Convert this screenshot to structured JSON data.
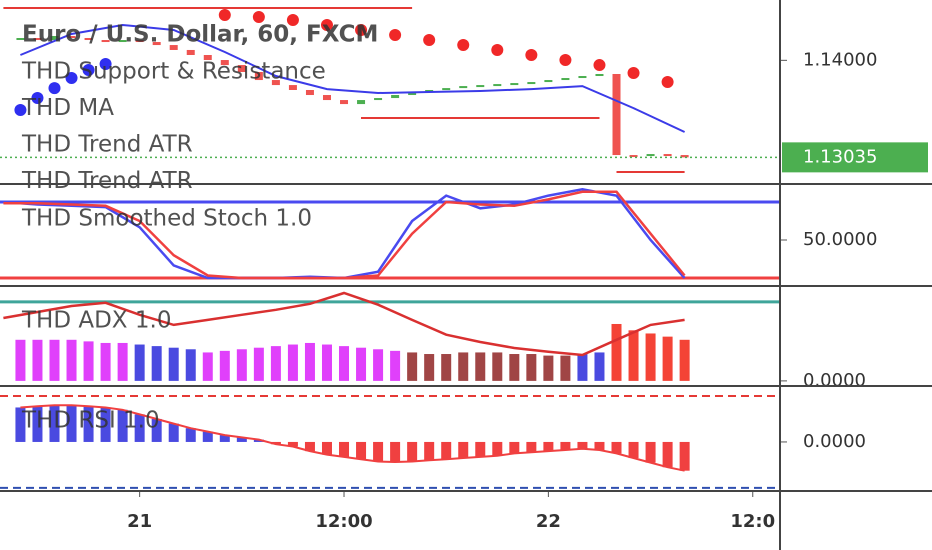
{
  "chart_data": [
    {
      "type": "candlestick",
      "title": "Euro / U.S. Dollar, 60, FXCM",
      "x": [
        -7,
        -6,
        -5,
        -4,
        -3,
        -2,
        -1,
        0,
        1,
        2,
        3,
        4,
        5,
        6,
        7,
        8,
        9,
        10,
        11,
        12,
        13,
        14,
        15,
        16,
        17,
        18,
        19,
        20,
        21,
        22,
        23,
        24,
        25,
        26,
        27,
        28,
        29,
        30,
        31,
        32
      ],
      "open": [
        1.14212,
        1.14222,
        1.14202,
        1.14242,
        1.14222,
        1.14202,
        1.14182,
        1.14202,
        1.14182,
        1.14152,
        1.14103,
        1.14053,
        1.14003,
        1.13953,
        1.13884,
        1.13804,
        1.13754,
        1.13705,
        1.13655,
        1.13605,
        1.13565,
        1.13605,
        1.13625,
        1.13655,
        1.13685,
        1.13705,
        1.13724,
        1.13744,
        1.13754,
        1.13764,
        1.13774,
        1.13784,
        1.13804,
        1.13824,
        1.13844,
        1.13864,
        1.13058,
        1.13048,
        1.13068,
        1.13058
      ],
      "close": [
        1.14222,
        1.14202,
        1.14242,
        1.14222,
        1.14202,
        1.14182,
        1.14202,
        1.14182,
        1.14152,
        1.14103,
        1.14053,
        1.14003,
        1.13953,
        1.13884,
        1.13804,
        1.13754,
        1.13705,
        1.13655,
        1.13605,
        1.13565,
        1.13605,
        1.13625,
        1.13655,
        1.13685,
        1.13705,
        1.13724,
        1.13744,
        1.13754,
        1.13764,
        1.13774,
        1.13784,
        1.13804,
        1.13824,
        1.13844,
        1.13864,
        1.13058,
        1.13048,
        1.13068,
        1.13058,
        1.13035
      ],
      "up_color": "#4caf50",
      "down_color": "#ef5350",
      "series": [
        {
          "name": "THD Support & Resistance",
          "color": "#e53935",
          "style": "line",
          "x": [
            -8,
            16,
            16,
            13,
            27,
            27,
            28,
            32
          ],
          "values": [
            1.1452,
            1.1452,
            null,
            1.13426,
            1.13426,
            null,
            1.12889,
            1.12889
          ]
        },
        {
          "name": "THD MA",
          "color": "#3b3be8",
          "style": "line",
          "x": [
            -7,
            -4,
            -1,
            2,
            5,
            8,
            11,
            14,
            17,
            20,
            23,
            26,
            29,
            32
          ],
          "values": [
            1.14053,
            1.14262,
            1.14351,
            1.14302,
            1.14083,
            1.13844,
            1.13714,
            1.13675,
            1.13685,
            1.13695,
            1.13714,
            1.13744,
            1.13525,
            1.13287
          ]
        },
        {
          "name": "THD Trend ATR",
          "color": "#f02828",
          "style": "dots",
          "x": [
            5,
            7,
            9,
            11,
            13,
            15,
            17,
            19,
            21,
            23,
            25,
            27,
            29,
            31
          ],
          "values": [
            1.14451,
            1.14431,
            1.14401,
            1.14351,
            1.14302,
            1.14252,
            1.14202,
            1.14152,
            1.14103,
            1.14053,
            1.14003,
            1.13953,
            1.13874,
            1.13784
          ]
        },
        {
          "name": "THD Trend ATR",
          "color": "#2f2ff0",
          "style": "dots",
          "x": [
            -7,
            -6,
            -5,
            -4,
            -3,
            -2
          ],
          "values": [
            1.13506,
            1.13625,
            1.13724,
            1.13824,
            1.13904,
            1.13963
          ]
        }
      ],
      "xlim": [
        -8.2,
        37.6
      ],
      "ylim": [
        1.1278,
        1.146
      ],
      "yticks": [
        {
          "value": 1.14,
          "label": "1.14000"
        }
      ],
      "last_price": {
        "value": 1.13035,
        "label": "1.13035"
      },
      "last_price_color": "#4caf50"
    },
    {
      "type": "line",
      "title": "THD Smoothed Stoch 1.0",
      "series": [
        {
          "color": "#4a4af0",
          "x": [
            -8,
            -6,
            -4,
            -2,
            0,
            2,
            4,
            6,
            8,
            10,
            12,
            14,
            16,
            18,
            20,
            22,
            24,
            26,
            28,
            30,
            32
          ],
          "values": [
            80,
            78,
            77,
            76,
            60,
            30,
            20,
            20,
            20,
            21,
            20,
            25,
            65,
            85,
            75,
            78,
            85,
            90,
            85,
            50,
            20
          ]
        },
        {
          "color": "#f04040",
          "x": [
            -8,
            -6,
            -4,
            -2,
            0,
            2,
            4,
            6,
            8,
            10,
            12,
            14,
            16,
            18,
            20,
            22,
            24,
            26,
            28,
            30,
            32
          ],
          "values": [
            79,
            79,
            78,
            77,
            65,
            38,
            22,
            20,
            20,
            20,
            20,
            22,
            55,
            80,
            78,
            77,
            82,
            88,
            88,
            55,
            22
          ]
        }
      ],
      "levels": [
        {
          "value": 80,
          "color": "#4a4af0"
        },
        {
          "value": 20,
          "color": "#f04040"
        }
      ],
      "xlim": [
        -8.2,
        37.6
      ],
      "ylim": [
        14.5,
        93.4
      ],
      "yticks": [
        {
          "value": 50,
          "label": "50.0000"
        }
      ]
    },
    {
      "type": "bar",
      "title": "THD ADX 1.0",
      "x": [
        -7,
        -6,
        -5,
        -4,
        -3,
        -2,
        -1,
        0,
        1,
        2,
        3,
        4,
        5,
        6,
        7,
        8,
        9,
        10,
        11,
        12,
        13,
        14,
        15,
        16,
        17,
        18,
        19,
        20,
        21,
        22,
        23,
        24,
        25,
        26,
        27,
        28,
        29,
        30,
        31,
        32
      ],
      "values": [
        13,
        13,
        13,
        13,
        12.5,
        12,
        12,
        11.5,
        11,
        10.5,
        10,
        9,
        9.5,
        10,
        10.5,
        11,
        11.5,
        12,
        11.5,
        11,
        10.5,
        10,
        9.5,
        9,
        8.5,
        8.5,
        9,
        9,
        9,
        8.5,
        8.5,
        8,
        8,
        8.5,
        9,
        18,
        16,
        15,
        14,
        13
      ],
      "colors": [
        "#e040fb",
        "#e040fb",
        "#e040fb",
        "#e040fb",
        "#e040fb",
        "#e040fb",
        "#e040fb",
        "#4a4ae0",
        "#4a4ae0",
        "#4a4ae0",
        "#4a4ae0",
        "#e040fb",
        "#e040fb",
        "#e040fb",
        "#e040fb",
        "#e040fb",
        "#e040fb",
        "#e040fb",
        "#e040fb",
        "#e040fb",
        "#e040fb",
        "#e040fb",
        "#e040fb",
        "#a04545",
        "#a04545",
        "#a04545",
        "#a04545",
        "#a04545",
        "#a04545",
        "#a04545",
        "#a04545",
        "#a04545",
        "#a04545",
        "#4a4ae0",
        "#4a4ae0",
        "#f44336",
        "#f44336",
        "#f44336",
        "#f44336",
        "#f44336"
      ],
      "series": [
        {
          "color": "#d93030",
          "x": [
            -8,
            -6,
            -4,
            -2,
            0,
            2,
            4,
            6,
            8,
            10,
            12,
            14,
            16,
            18,
            20,
            22,
            24,
            26,
            28,
            30,
            32
          ],
          "values": [
            19.9,
            21.8,
            23.7,
            24.7,
            20.9,
            17.7,
            19.3,
            20.9,
            22.5,
            24.4,
            27.8,
            24.1,
            19.3,
            14.6,
            12.3,
            10.4,
            9.2,
            8.2,
            13,
            17.7,
            19.3
          ]
        }
      ],
      "levels": [
        {
          "value": 25,
          "color": "#3fa59a"
        }
      ],
      "xlim": [
        -8.2,
        37.6
      ],
      "ylim": [
        -1.3,
        29.7
      ],
      "yticks": [
        {
          "value": 0,
          "label": "0.0000"
        }
      ]
    },
    {
      "type": "bar",
      "title": "THD RSI 1.0",
      "x": [
        -7,
        -6,
        -5,
        -4,
        -3,
        -2,
        -1,
        0,
        1,
        2,
        3,
        4,
        5,
        6,
        7,
        8,
        9,
        10,
        11,
        12,
        13,
        14,
        15,
        16,
        17,
        18,
        19,
        20,
        21,
        22,
        23,
        24,
        25,
        26,
        27,
        28,
        29,
        30,
        31,
        32
      ],
      "values": [
        15,
        15.5,
        16,
        16,
        15.5,
        15,
        14,
        12,
        10,
        8,
        6,
        4.5,
        3,
        2,
        1,
        -1,
        -2,
        -4,
        -5.5,
        -6.5,
        -7.5,
        -8.5,
        -8.7,
        -8.5,
        -8,
        -7.5,
        -7,
        -6.5,
        -6,
        -5,
        -4.5,
        -4,
        -3.5,
        -3,
        -3.5,
        -5,
        -7,
        -9,
        -11,
        -12.5
      ],
      "pos_color": "#4a4ae0",
      "neg_color": "#f04040",
      "levels": [
        {
          "value": 20,
          "color": "#e53935",
          "dash": true
        },
        {
          "value": -20,
          "color": "#2f4fb0",
          "dash": true
        }
      ],
      "xlim": [
        -8.2,
        37.6
      ],
      "ylim": [
        -20.9,
        23.9
      ],
      "yticks": [
        {
          "value": 0,
          "label": "0.0000"
        }
      ],
      "xticks": [
        {
          "value": 0,
          "label": "21"
        },
        {
          "value": 12,
          "label": "12:00"
        },
        {
          "value": 24,
          "label": "22"
        },
        {
          "value": 36,
          "label": "12:0"
        }
      ]
    }
  ]
}
